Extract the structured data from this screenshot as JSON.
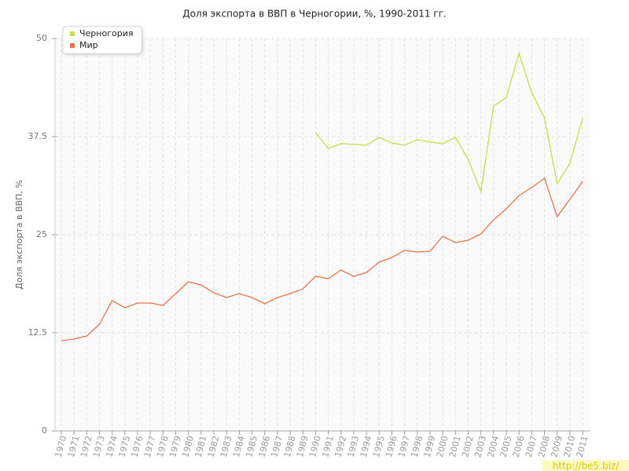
{
  "chart_data": {
    "type": "line",
    "title": "Доля экспорта в ВВП в Черногории, %, 1990-2011 гг.",
    "y_label": "Доля экспорта в ВВП, %",
    "watermark": "http://be5.biz/",
    "categories": [
      "1970",
      "1971",
      "1972",
      "1973",
      "1974",
      "1975",
      "1976",
      "1977",
      "1978",
      "1979",
      "1980",
      "1981",
      "1982",
      "1983",
      "1984",
      "1985",
      "1986",
      "1987",
      "1988",
      "1989",
      "1990",
      "1991",
      "1992",
      "1993",
      "1994",
      "1995",
      "1996",
      "1997",
      "1998",
      "1999",
      "2000",
      "2001",
      "2002",
      "2003",
      "2004",
      "2005",
      "2006",
      "2007",
      "2008",
      "2009",
      "2010",
      "2011"
    ],
    "series": [
      {
        "name": "Черногория",
        "color": "#c5dd4a",
        "values": [
          null,
          null,
          null,
          null,
          null,
          null,
          null,
          null,
          null,
          null,
          null,
          null,
          null,
          null,
          null,
          null,
          null,
          null,
          null,
          null,
          38.0,
          36.0,
          36.6,
          36.5,
          36.4,
          37.4,
          36.7,
          36.4,
          37.1,
          36.8,
          36.6,
          37.4,
          34.6,
          30.5,
          41.4,
          42.5,
          48.1,
          43.1,
          39.9,
          31.5,
          34.1,
          39.8
        ]
      },
      {
        "name": "Мир",
        "color": "#e8734a",
        "values": [
          11.5,
          11.7,
          12.1,
          13.6,
          16.6,
          15.7,
          16.3,
          16.3,
          16.0,
          17.5,
          19.0,
          18.6,
          17.6,
          17.0,
          17.5,
          17.0,
          16.2,
          17.0,
          17.5,
          18.1,
          19.7,
          19.4,
          20.5,
          19.7,
          20.2,
          21.5,
          22.1,
          23.0,
          22.8,
          22.9,
          24.8,
          24.0,
          24.3,
          25.1,
          26.9,
          28.3,
          30.0,
          31.0,
          32.2,
          27.3,
          29.5,
          31.8
        ]
      }
    ],
    "ylim": [
      0,
      50
    ],
    "yticks": [
      0,
      12.5,
      25,
      37.5,
      50
    ],
    "grid": true,
    "legend": "top-left"
  }
}
